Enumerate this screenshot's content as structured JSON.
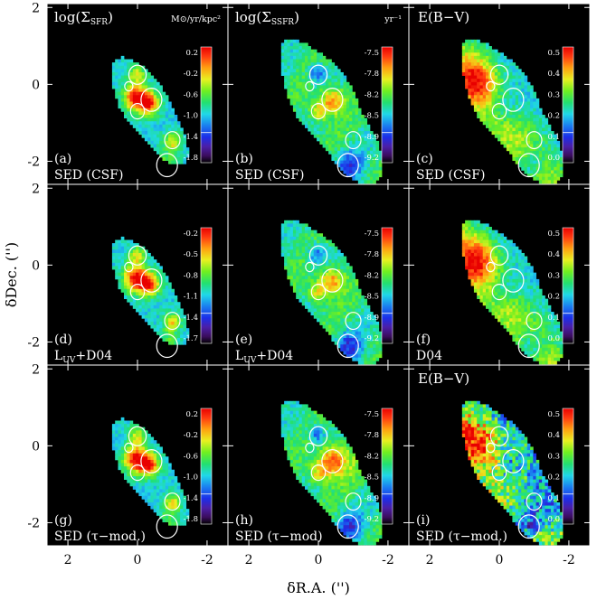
{
  "chart_data": {
    "type": "heatmap",
    "xlabel": "δR.A. ('')",
    "ylabel": "δDec. ('')",
    "xlim": [
      2.6,
      -2.6
    ],
    "ylim": [
      -2.6,
      2.1
    ],
    "x_ticks": [
      "2",
      "0",
      "-2"
    ],
    "y_ticks": [
      "2",
      "0",
      "-2"
    ],
    "x_tick_values": [
      2,
      0,
      -2
    ],
    "y_tick_values": [
      2,
      0,
      -2
    ],
    "columns": [
      {
        "id": "sfr",
        "title": "log(Σ_SFR)",
        "unit": "M⊙/yr/kpc²",
        "colorbar_ticks": [
          "0.2",
          "-0.2",
          "-0.6",
          "-1.0",
          "-1.4",
          "-1.8"
        ]
      },
      {
        "id": "ssfr",
        "title": "log(Σ_SSFR)",
        "unit": "yr⁻¹",
        "colorbar_ticks": [
          "-7.5",
          "-7.8",
          "-8.2",
          "-8.5",
          "-8.9",
          "-9.2"
        ]
      },
      {
        "id": "ebv",
        "title": "E(B−V)",
        "unit": "",
        "colorbar_ticks": [
          "0.5",
          "0.4",
          "0.3",
          "0.2",
          "0.1",
          "0.0"
        ]
      }
    ],
    "row_colorbar_ticks": {
      "sfr": [
        [
          "0.2",
          "-0.2",
          "-0.6",
          "-1.0",
          "-1.4",
          "-1.8"
        ],
        [
          "-0.2",
          "-0.5",
          "-0.8",
          "-1.1",
          "-1.4",
          "-1.7"
        ],
        [
          "0.2",
          "-0.2",
          "-0.6",
          "-1.0",
          "-1.4",
          "-1.8"
        ]
      ]
    },
    "panels": [
      {
        "id": "a",
        "label": "(a)",
        "method": "SED (CSF)",
        "row": 0,
        "col": 0
      },
      {
        "id": "b",
        "label": "(b)",
        "method": "SED (CSF)",
        "row": 0,
        "col": 1
      },
      {
        "id": "c",
        "label": "(c)",
        "method": "SED (CSF)",
        "row": 0,
        "col": 2
      },
      {
        "id": "d",
        "label": "(d)",
        "method": "L_UV+D04",
        "row": 1,
        "col": 0
      },
      {
        "id": "e",
        "label": "(e)",
        "method": "L_UV+D04",
        "row": 1,
        "col": 1
      },
      {
        "id": "f",
        "label": "(f)",
        "method": "D04",
        "row": 1,
        "col": 2
      },
      {
        "id": "g",
        "label": "(g)",
        "method": "SED (τ−mod.)",
        "row": 2,
        "col": 0
      },
      {
        "id": "h",
        "label": "(h)",
        "method": "SED (τ−mod)",
        "row": 2,
        "col": 1
      },
      {
        "id": "i",
        "label": "(i)",
        "method": "SED (τ−mod.)",
        "row": 2,
        "col": 2,
        "extra_title": "E(B−V)"
      }
    ],
    "apertures": [
      {
        "x": 0.0,
        "y": 0.25,
        "r": 0.25
      },
      {
        "x": 0.25,
        "y": -0.05,
        "r": 0.12
      },
      {
        "x": -0.4,
        "y": -0.4,
        "r": 0.3
      },
      {
        "x": 0.0,
        "y": -0.7,
        "r": 0.2
      },
      {
        "x": -1.0,
        "y": -1.45,
        "r": 0.22
      },
      {
        "x": -0.85,
        "y": -2.1,
        "r": 0.3
      }
    ]
  }
}
